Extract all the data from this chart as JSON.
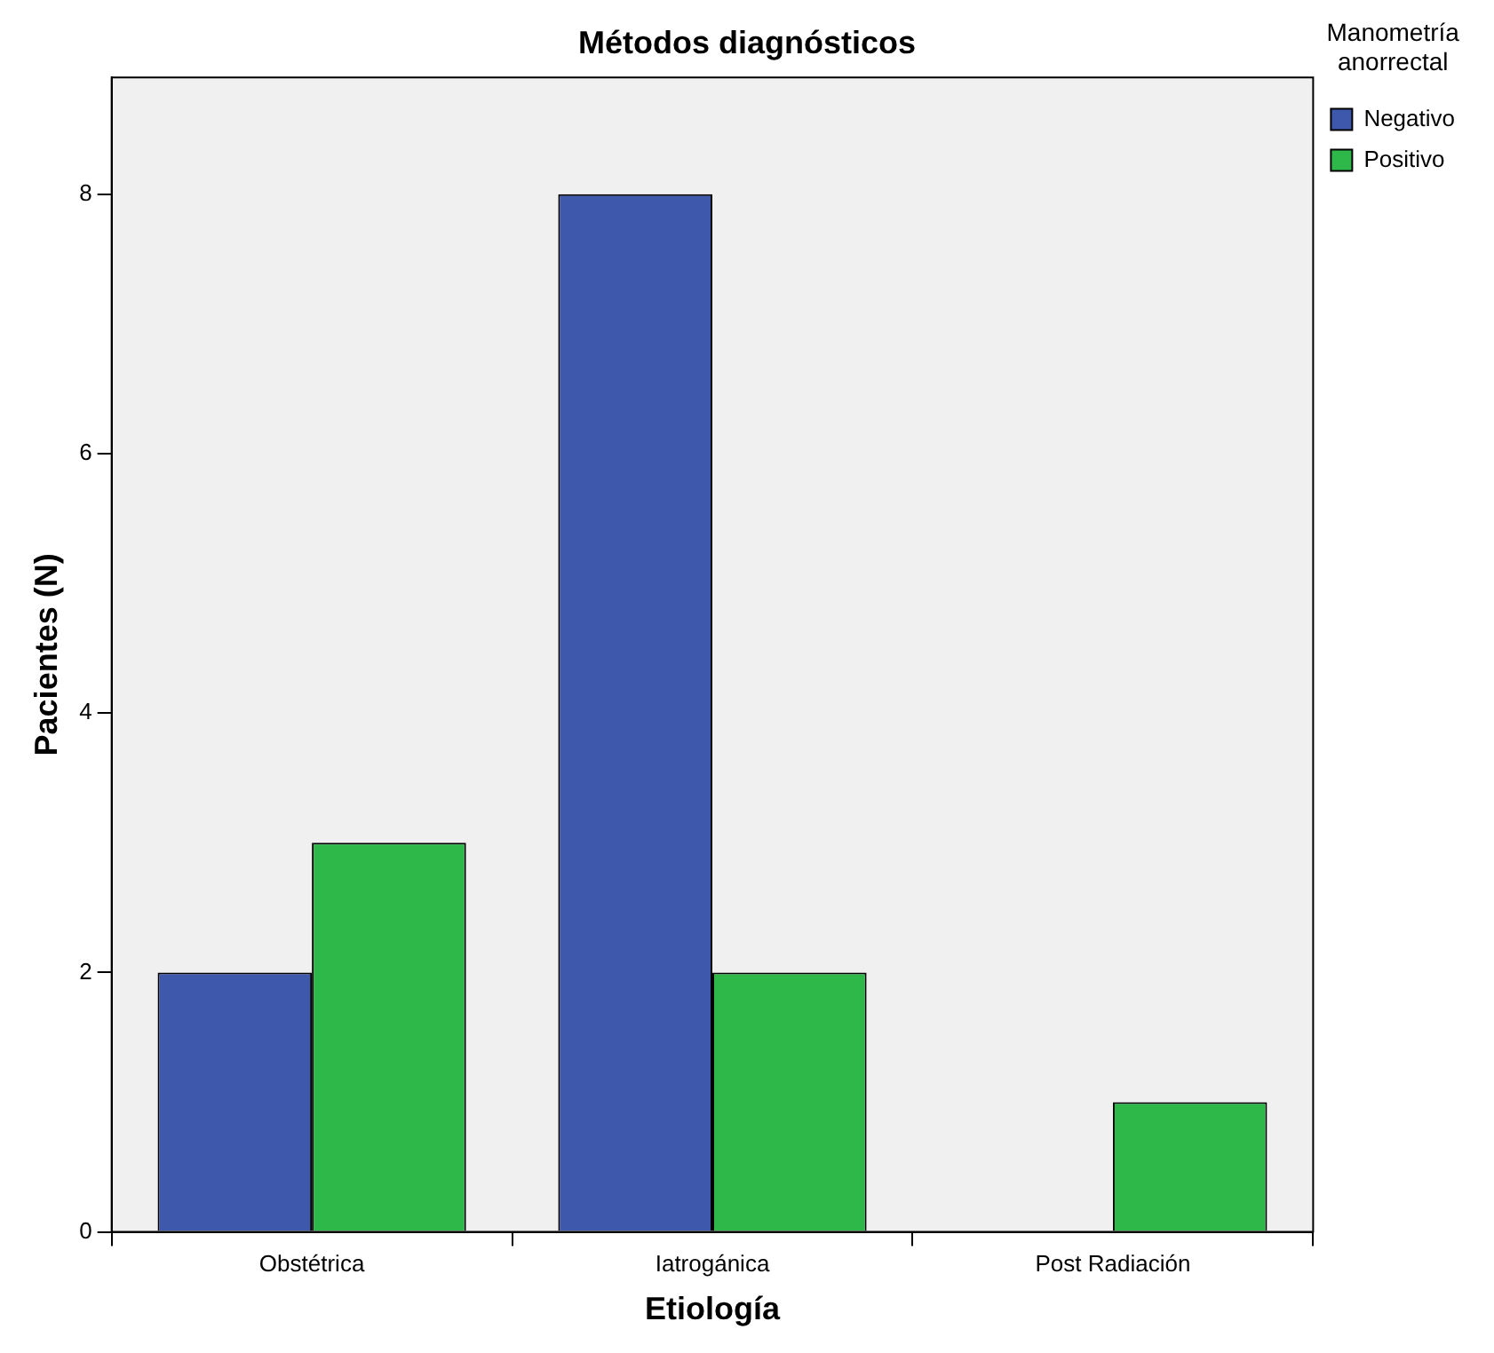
{
  "chart_data": {
    "type": "bar",
    "title": "Métodos diagnósticos",
    "xlabel": "Etiología",
    "ylabel": "Pacientes (N)",
    "legend_title": "Manometría anorrectal",
    "categories": [
      "Obstétrica",
      "Iatrogánica",
      "Post Radiación"
    ],
    "series": [
      {
        "name": "Negativo",
        "color": "#3e58ac",
        "values": [
          2,
          8,
          0
        ]
      },
      {
        "name": "Positivo",
        "color": "#2eb84a",
        "values": [
          3,
          2,
          1
        ]
      }
    ],
    "ylim": [
      0,
      8.9
    ],
    "yticks": [
      0,
      2,
      4,
      6,
      8
    ],
    "grid": false,
    "legend": "top right"
  }
}
